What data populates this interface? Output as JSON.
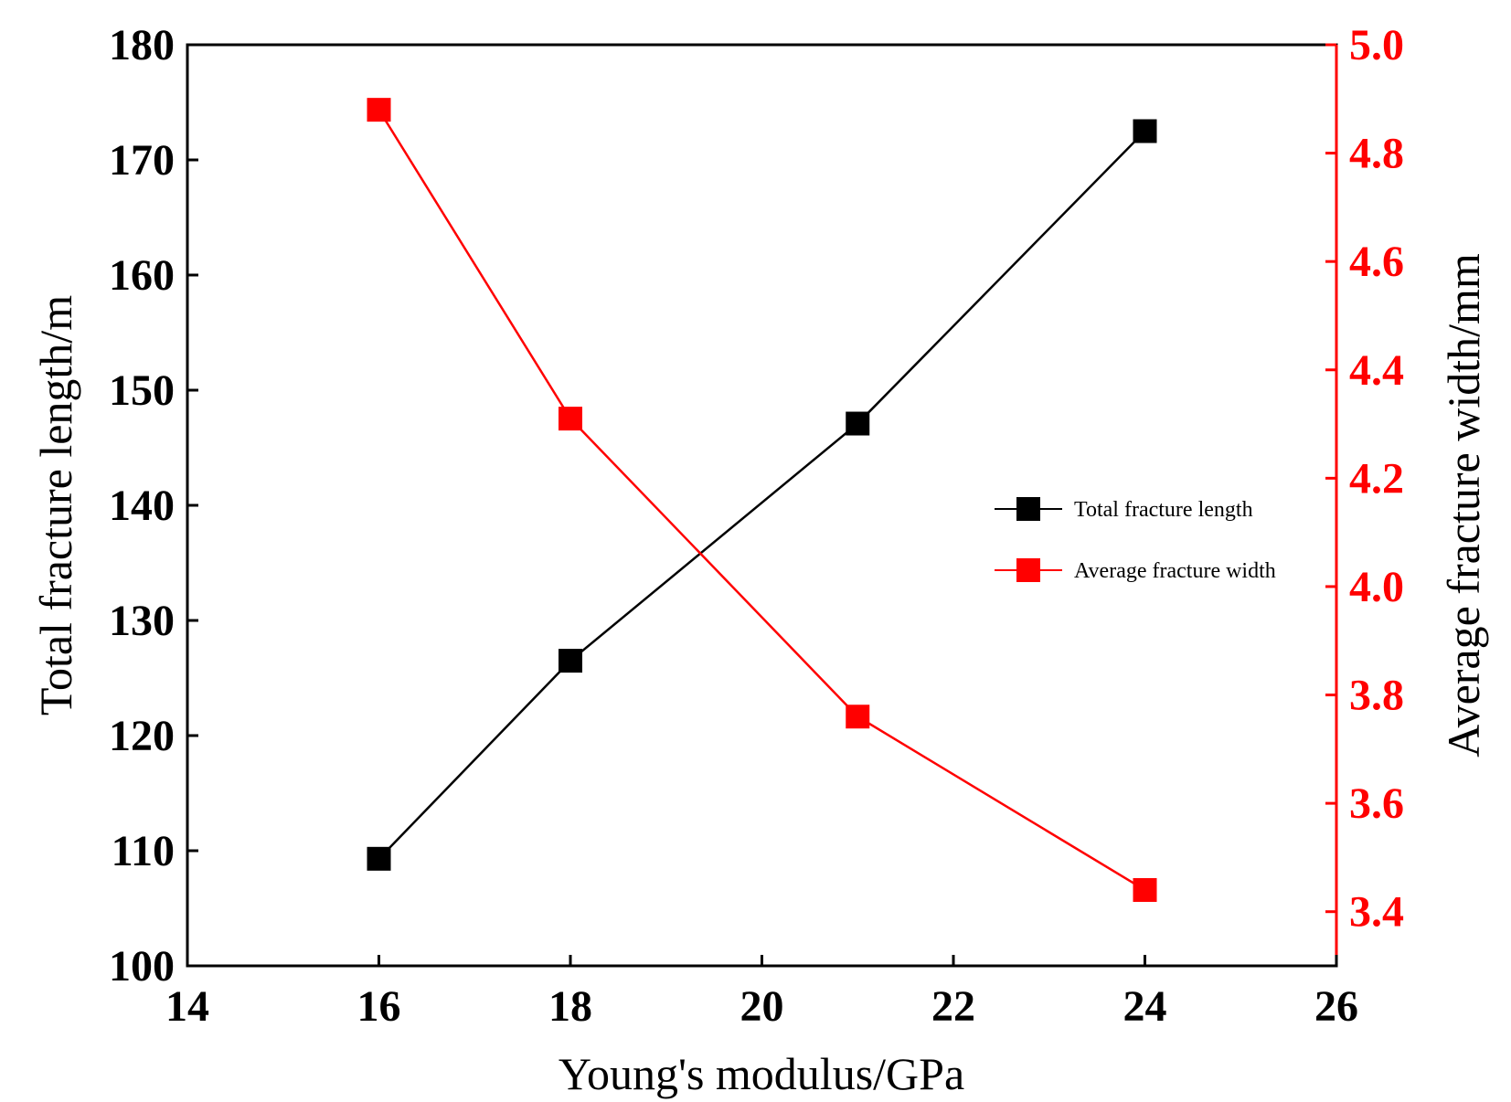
{
  "chart_data": {
    "type": "line",
    "x": [
      16,
      18,
      21,
      24
    ],
    "xlabel": "Young's modulus/GPa",
    "xlim": [
      14,
      26
    ],
    "xticks": [
      "14",
      "16",
      "18",
      "20",
      "22",
      "24",
      "26"
    ],
    "ylabel_left": "Total fracture length/m",
    "ylim_left": [
      100,
      180
    ],
    "yticks_left": [
      "100",
      "110",
      "120",
      "130",
      "140",
      "150",
      "160",
      "170",
      "180"
    ],
    "ylabel_right": "Average fracture width/mm",
    "ylim_right": [
      3.3,
      5.0
    ],
    "yticks_right": [
      "3.4",
      "3.6",
      "3.8",
      "4.0",
      "4.2",
      "4.4",
      "4.6",
      "4.8",
      "5.0"
    ],
    "series": [
      {
        "name": "Total fracture length",
        "axis": "left",
        "color": "#000000",
        "marker": "square",
        "values": [
          109.3,
          126.5,
          147.1,
          172.5
        ]
      },
      {
        "name": "Average fracture width",
        "axis": "right",
        "color": "#ff0000",
        "marker": "square",
        "values": [
          4.88,
          4.31,
          3.76,
          3.44
        ]
      }
    ],
    "legend": {
      "position": "center-right"
    },
    "grid": false
  }
}
